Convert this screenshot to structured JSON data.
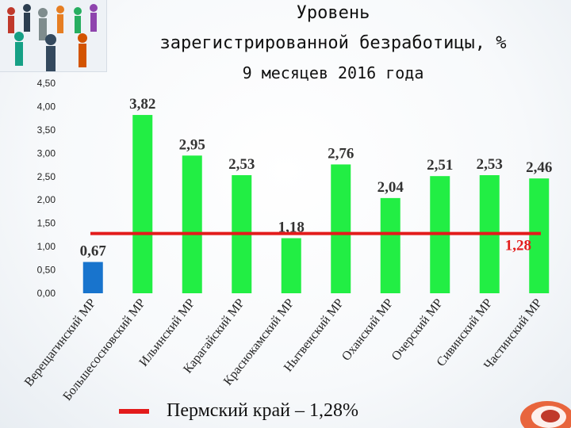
{
  "title": {
    "line1": "Уровень",
    "line2": "зарегистрированной безработицы, %",
    "line3": "9 месяцев 2016 года"
  },
  "legend": {
    "label": "Пермский край – 1,28%",
    "color": "#e31b1b"
  },
  "chart_data": {
    "type": "bar",
    "categories": [
      "Верещагинский МР",
      "Большесосновский МР",
      "Ильинский МР",
      "Карагайский МР",
      "Краснокамский МР",
      "Нытвенский МР",
      "Оханский МР",
      "Очерский МР",
      "Сивинский МР",
      "Частинский МР"
    ],
    "values": [
      0.67,
      3.82,
      2.95,
      2.53,
      1.18,
      2.76,
      2.04,
      2.51,
      2.53,
      2.46
    ],
    "value_labels": [
      "0,67",
      "3,82",
      "2,95",
      "2,53",
      "1,18",
      "2,76",
      "2,04",
      "2,51",
      "2,53",
      "2,46"
    ],
    "bar_colors": [
      "#1874cd",
      "#22ee44",
      "#22ee44",
      "#22ee44",
      "#22ee44",
      "#22ee44",
      "#22ee44",
      "#22ee44",
      "#22ee44",
      "#22ee44"
    ],
    "ylim": [
      0,
      4.5
    ],
    "yticks": [
      "0,00",
      "0,50",
      "1,00",
      "1,50",
      "2,00",
      "2,50",
      "3,00",
      "3,50",
      "4,00",
      "4,50"
    ],
    "grid": false,
    "reference_line": {
      "value": 1.28,
      "label": "1,28",
      "color": "#e31b1b"
    },
    "legend_position": "bottom-left"
  }
}
